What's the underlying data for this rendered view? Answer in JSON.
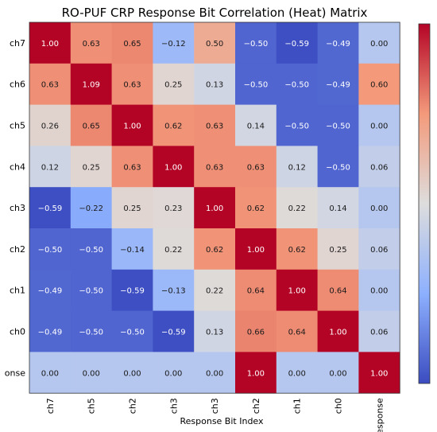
{
  "chart_data": {
    "type": "heatmap",
    "title": "RO-PUF CRP Response Bit Correlation (Heat) Matrix",
    "xlabel": "Response Bit Index",
    "ylabel": "",
    "x_categories": [
      "ch7",
      "ch5",
      "ch2",
      "ch3",
      "ch3",
      "ch2",
      "ch1",
      "ch0",
      "response"
    ],
    "y_categories": [
      "ch7",
      "ch6",
      "ch5",
      "ch4",
      "ch3",
      "ch2",
      "ch1",
      "ch0",
      "onse"
    ],
    "values": [
      [
        1.0,
        0.63,
        0.65,
        -0.12,
        0.5,
        -0.5,
        -0.59,
        -0.49,
        0.0
      ],
      [
        0.63,
        1.09,
        0.63,
        0.25,
        0.13,
        -0.5,
        -0.5,
        -0.49,
        0.6
      ],
      [
        0.26,
        0.65,
        1.0,
        0.62,
        0.63,
        0.14,
        -0.5,
        -0.5,
        0.0
      ],
      [
        0.12,
        0.25,
        0.63,
        1.0,
        0.63,
        0.63,
        0.12,
        -0.5,
        0.06
      ],
      [
        -0.59,
        -0.22,
        0.25,
        0.23,
        1.0,
        0.62,
        0.22,
        0.14,
        0.0
      ],
      [
        -0.5,
        -0.5,
        -0.14,
        0.22,
        0.62,
        1.0,
        0.62,
        0.25,
        0.06
      ],
      [
        -0.49,
        -0.5,
        -0.59,
        -0.13,
        0.22,
        0.64,
        1.0,
        0.64,
        0.0
      ],
      [
        -0.49,
        -0.5,
        -0.5,
        -0.59,
        0.13,
        0.66,
        0.64,
        1.0,
        0.06
      ],
      [
        0.0,
        0.0,
        0.0,
        0.0,
        0.0,
        1.0,
        0.0,
        0.0,
        1.0
      ]
    ],
    "value_labels": [
      [
        "1.00",
        "0.63",
        "0.65",
        "−0.12",
        "0.50",
        "−0.50",
        "−0.59",
        "−0.49",
        "0.00"
      ],
      [
        "0.63",
        "1.09",
        "0.63",
        "0.25",
        "0.13",
        "−0.50",
        "−0.50",
        "−0.49",
        "0.60"
      ],
      [
        "0.26",
        "0.65",
        "1.00",
        "0.62",
        "0.63",
        "0.14",
        "−0.50",
        "−0.50",
        "0.00"
      ],
      [
        "0.12",
        "0.25",
        "0.63",
        "1.00",
        "0.63",
        "0.63",
        "0.12",
        "−0.50",
        "0.06"
      ],
      [
        "−0.59",
        "−0.22",
        "0.25",
        "0.23",
        "1.00",
        "0.62",
        "0.22",
        "0.14",
        "0.00"
      ],
      [
        "−0.50",
        "−0.50",
        "−0.14",
        "0.22",
        "0.62",
        "1.00",
        "0.62",
        "0.25",
        "0.06"
      ],
      [
        "−0.49",
        "−0.50",
        "−0.59",
        "−0.13",
        "0.22",
        "0.64",
        "1.00",
        "0.64",
        "0.00"
      ],
      [
        "−0.49",
        "−0.50",
        "−0.50",
        "−0.59",
        "0.13",
        "0.66",
        "0.64",
        "1.00",
        "0.06"
      ],
      [
        "0.00",
        "0.00",
        "0.00",
        "0.00",
        "0.00",
        "1.00",
        "0.00",
        "0.00",
        "1.00"
      ]
    ],
    "color_scale": {
      "min": -0.6,
      "max": 1.0,
      "colormap": "coolwarm"
    },
    "colorbar_tick_labels": [],
    "colors": {
      "low": "#3b4cc0",
      "mid": "#dddddd",
      "high": "#b40426"
    }
  }
}
